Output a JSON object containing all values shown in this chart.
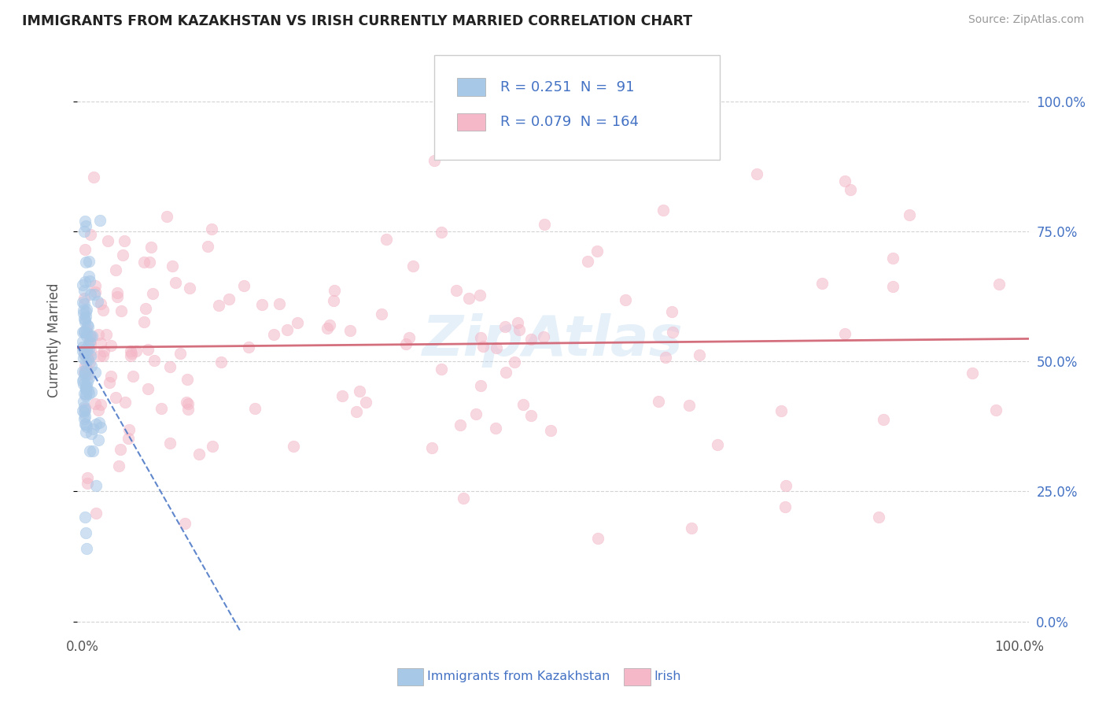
{
  "title": "IMMIGRANTS FROM KAZAKHSTAN VS IRISH CURRENTLY MARRIED CORRELATION CHART",
  "source": "Source: ZipAtlas.com",
  "ylabel": "Currently Married",
  "kazakhstan_R": 0.251,
  "kazakhstan_N": 91,
  "irish_R": 0.079,
  "irish_N": 164,
  "kazakhstan_color": "#a8c8e8",
  "irish_color": "#f4b8c8",
  "kazakhstan_line_color": "#4472c4",
  "irish_line_color": "#d06070",
  "background_color": "#ffffff",
  "grid_color": "#c8c8c8",
  "title_color": "#222222",
  "legend_text_color": "#4472c4",
  "watermark": "ZipAtlas",
  "scatter_size": 110,
  "scatter_alpha": 0.55
}
